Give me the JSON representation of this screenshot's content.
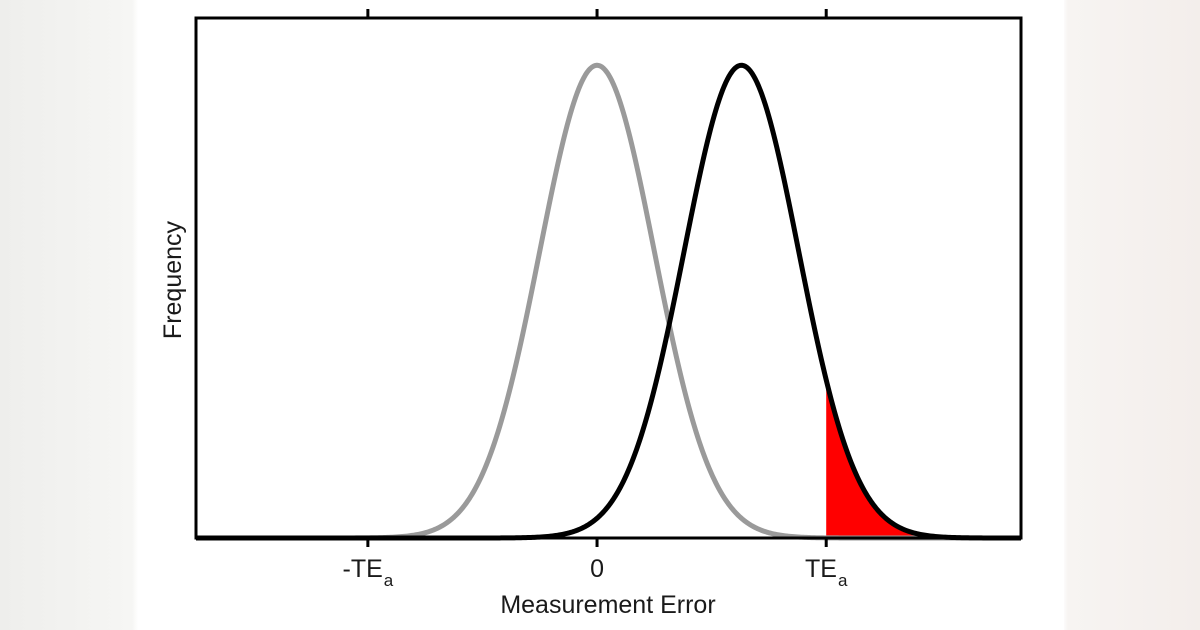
{
  "chart_data": {
    "type": "line",
    "xlabel": "Measurement Error",
    "ylabel": "Frequency",
    "xlim": [
      -1.75,
      1.85
    ],
    "ylim": [
      0,
      1.1
    ],
    "x_ticks": [
      {
        "value": -1,
        "label": "-TE",
        "sub": "a"
      },
      {
        "value": 0,
        "label": "0",
        "sub": ""
      },
      {
        "value": 1,
        "label": "TE",
        "sub": "a"
      }
    ],
    "series": [
      {
        "mean": 0.0,
        "sd": 0.25,
        "color": "#9a9a9a"
      },
      {
        "mean": 0.63,
        "sd": 0.25,
        "color": "#000000"
      }
    ],
    "shaded_region": {
      "series_index": 1,
      "x_from": 1,
      "x_to": 1.85,
      "color": "#ff0000"
    },
    "grid": false
  }
}
